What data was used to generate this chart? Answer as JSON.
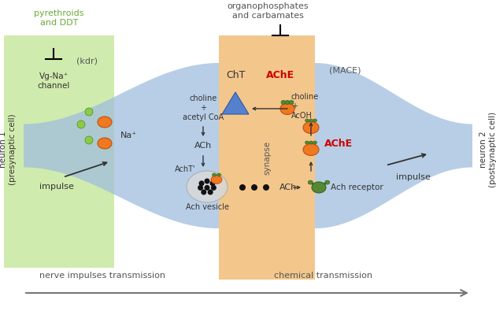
{
  "title_top": "organophosphates\nand carbamates",
  "title_left": "pyrethroids\nand DDT",
  "label_kdr": "(kdr)",
  "label_mace": "(MACE)",
  "label_cht": "ChT",
  "label_ache_top": "AChE",
  "label_ache_mid": "AChE",
  "label_vgna": "Vg-Na⁺\nchannel",
  "label_na": "Na⁺",
  "label_choline_acetyl": "choline\n+\nacetyl CoA",
  "label_ach1": "ACh",
  "label_acht": "AchT'",
  "label_ach_vesicle": "Ach vesicle",
  "label_ach2": "ACh",
  "label_ach_receptor": "Ach receptor",
  "label_choline_acoh": "choline\n+\nAcOH",
  "label_synapse": "synapse",
  "label_impulse_left": "impulse",
  "label_impulse_right": "impulse",
  "label_neuron1": "neuron 1\n(presynaptic cell)",
  "label_neuron2": "neuron 2\n(postsynaptic cell)",
  "label_nerve": "nerve impulses transmission",
  "label_chemical": "chemical transmission",
  "bg_color": "#ffffff",
  "green_region_color": "#c8e8a0",
  "blue_region_color": "#a0bede",
  "orange_region_color": "#f0b870",
  "inhibit_color": "#000000",
  "ache_color": "#cc0000",
  "arrow_color": "#333333"
}
